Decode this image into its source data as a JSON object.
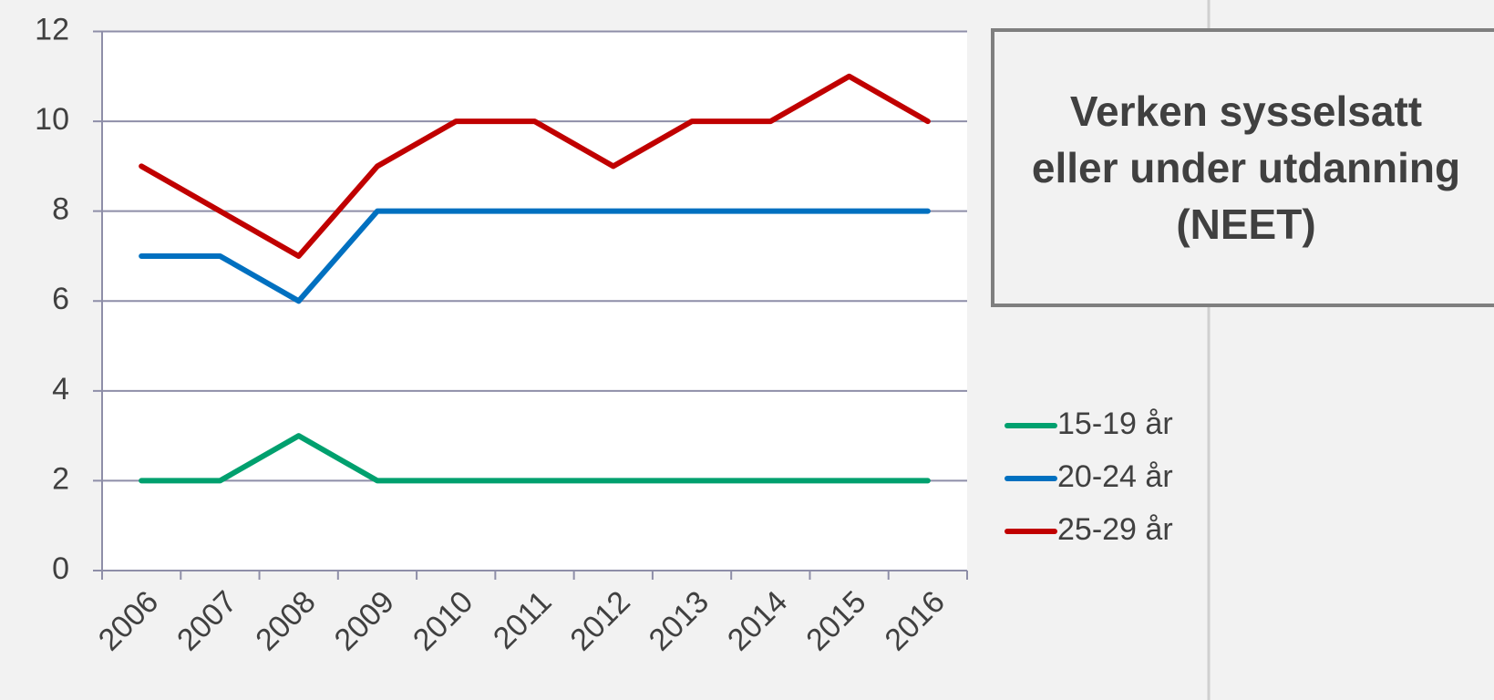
{
  "chart_data": {
    "type": "line",
    "title": "Verken sysselsatt eller under utdanning (NEET)",
    "categories": [
      "2006",
      "2007",
      "2008",
      "2009",
      "2010",
      "2011",
      "2012",
      "2013",
      "2014",
      "2015",
      "2016"
    ],
    "series": [
      {
        "name": "15-19 år",
        "color": "#00a06e",
        "values": [
          2,
          2,
          3,
          2,
          2,
          2,
          2,
          2,
          2,
          2,
          2
        ]
      },
      {
        "name": "20-24 år",
        "color": "#0070c0",
        "values": [
          7,
          7,
          6,
          8,
          8,
          8,
          8,
          8,
          8,
          8,
          8
        ]
      },
      {
        "name": "25-29 år",
        "color": "#c00000",
        "values": [
          9,
          8,
          7,
          9,
          10,
          10,
          9,
          10,
          10,
          11,
          10
        ]
      }
    ],
    "ylim": [
      0,
      12
    ],
    "yticks": [
      0,
      2,
      4,
      6,
      8,
      10,
      12
    ],
    "grid": true,
    "legend": "right"
  }
}
